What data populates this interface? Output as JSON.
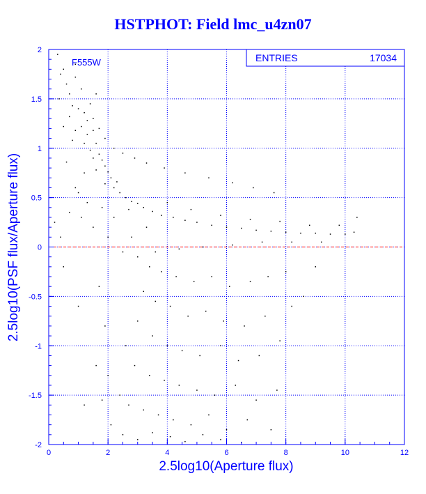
{
  "title": "HSTPHOT: Field lmc_u4zn07",
  "stats": {
    "label": "ENTRIES",
    "value": "17034"
  },
  "chart_data": {
    "type": "scatter",
    "title": "HSTPHOT: Field lmc_u4zn07",
    "filter_label": "F555W",
    "xlabel": "2.5log10(Aperture flux)",
    "ylabel": "2.5log10(PSF flux/Aperture flux)",
    "xlim": [
      0,
      12
    ],
    "ylim": [
      -2,
      2
    ],
    "xticks": [
      0,
      2,
      4,
      6,
      8,
      10,
      12
    ],
    "yticks": [
      -2,
      -1.5,
      -1,
      -0.5,
      0,
      0.5,
      1,
      1.5,
      2
    ],
    "grid": true,
    "reference_line": {
      "y": 0,
      "color": "#ff0000",
      "style": "dashed"
    },
    "entries": 17034,
    "colors": {
      "axis": "#0000ff",
      "points": "#000000",
      "reference": "#ff0000"
    },
    "series": [
      {
        "points": [
          [
            0.3,
            1.95
          ],
          [
            0.5,
            1.8
          ],
          [
            0.6,
            1.65
          ],
          [
            0.7,
            1.55
          ],
          [
            0.9,
            1.72
          ],
          [
            1.1,
            1.6
          ],
          [
            0.35,
            1.5
          ],
          [
            0.8,
            1.43
          ],
          [
            1.0,
            1.4
          ],
          [
            0.7,
            1.32
          ],
          [
            1.2,
            1.36
          ],
          [
            1.3,
            1.28
          ],
          [
            1.5,
            1.3
          ],
          [
            0.5,
            1.22
          ],
          [
            0.9,
            1.18
          ],
          [
            1.1,
            1.22
          ],
          [
            1.3,
            1.14
          ],
          [
            1.5,
            1.18
          ],
          [
            1.6,
            1.05
          ],
          [
            1.2,
            1.05
          ],
          [
            0.8,
            1.08
          ],
          [
            1.4,
            0.98
          ],
          [
            1.7,
            0.94
          ],
          [
            1.5,
            0.9
          ],
          [
            1.8,
            0.88
          ],
          [
            0.6,
            0.86
          ],
          [
            1.9,
            0.82
          ],
          [
            1.6,
            0.78
          ],
          [
            2.0,
            0.76
          ],
          [
            2.1,
            0.7
          ],
          [
            2.3,
            0.66
          ],
          [
            2.2,
            0.6
          ],
          [
            1.9,
            0.64
          ],
          [
            1.2,
            0.75
          ],
          [
            1.0,
            0.55
          ],
          [
            2.4,
            0.55
          ],
          [
            2.6,
            0.5
          ],
          [
            2.8,
            0.46
          ],
          [
            3.0,
            0.44
          ],
          [
            2.7,
            0.38
          ],
          [
            3.2,
            0.4
          ],
          [
            3.5,
            0.36
          ],
          [
            3.8,
            0.32
          ],
          [
            4.2,
            0.3
          ],
          [
            4.6,
            0.27
          ],
          [
            5.0,
            0.25
          ],
          [
            5.5,
            0.22
          ],
          [
            6.0,
            0.2
          ],
          [
            6.5,
            0.19
          ],
          [
            7.0,
            0.17
          ],
          [
            7.5,
            0.16
          ],
          [
            8.0,
            0.15
          ],
          [
            8.5,
            0.14
          ],
          [
            9.0,
            0.14
          ],
          [
            9.5,
            0.13
          ],
          [
            10.0,
            0.13
          ],
          [
            10.3,
            0.15
          ],
          [
            10.4,
            0.3
          ],
          [
            9.8,
            0.22
          ],
          [
            9.2,
            0.05
          ],
          [
            8.8,
            0.22
          ],
          [
            8.2,
            0.05
          ],
          [
            7.8,
            0.26
          ],
          [
            7.2,
            0.05
          ],
          [
            6.8,
            0.28
          ],
          [
            6.2,
            0.02
          ],
          [
            5.8,
            0.32
          ],
          [
            5.2,
            0.0
          ],
          [
            4.8,
            0.38
          ],
          [
            4.4,
            -0.02
          ],
          [
            4.0,
            0.45
          ],
          [
            3.6,
            -0.05
          ],
          [
            3.3,
            0.2
          ],
          [
            3.0,
            -0.1
          ],
          [
            2.8,
            0.1
          ],
          [
            2.5,
            -0.05
          ],
          [
            2.2,
            0.3
          ],
          [
            2.0,
            0.1
          ],
          [
            1.8,
            0.4
          ],
          [
            1.5,
            0.2
          ],
          [
            1.3,
            0.45
          ],
          [
            1.1,
            0.3
          ],
          [
            0.9,
            0.6
          ],
          [
            0.7,
            0.35
          ],
          [
            3.4,
            -0.2
          ],
          [
            3.8,
            -0.25
          ],
          [
            4.3,
            -0.3
          ],
          [
            4.9,
            -0.35
          ],
          [
            5.5,
            -0.3
          ],
          [
            6.1,
            -0.4
          ],
          [
            6.8,
            -0.35
          ],
          [
            7.4,
            -0.3
          ],
          [
            8.0,
            -0.25
          ],
          [
            3.2,
            -0.45
          ],
          [
            3.6,
            -0.55
          ],
          [
            4.1,
            -0.6
          ],
          [
            4.7,
            -0.7
          ],
          [
            5.3,
            -0.65
          ],
          [
            5.9,
            -0.75
          ],
          [
            6.6,
            -0.8
          ],
          [
            7.3,
            -0.7
          ],
          [
            8.2,
            -0.6
          ],
          [
            3.0,
            -0.75
          ],
          [
            3.5,
            -0.9
          ],
          [
            4.0,
            -1.0
          ],
          [
            4.5,
            -1.05
          ],
          [
            5.1,
            -1.1
          ],
          [
            5.8,
            -1.0
          ],
          [
            6.4,
            -1.15
          ],
          [
            7.1,
            -1.1
          ],
          [
            7.8,
            -0.95
          ],
          [
            2.6,
            -1.0
          ],
          [
            2.9,
            -1.2
          ],
          [
            3.4,
            -1.3
          ],
          [
            3.9,
            -1.35
          ],
          [
            4.4,
            -1.4
          ],
          [
            5.0,
            -1.45
          ],
          [
            5.6,
            -1.5
          ],
          [
            6.3,
            -1.4
          ],
          [
            7.0,
            -1.55
          ],
          [
            7.7,
            -1.45
          ],
          [
            2.4,
            -1.5
          ],
          [
            2.7,
            -1.6
          ],
          [
            3.2,
            -1.65
          ],
          [
            3.7,
            -1.7
          ],
          [
            4.2,
            -1.75
          ],
          [
            4.8,
            -1.8
          ],
          [
            5.4,
            -1.7
          ],
          [
            6.0,
            -1.85
          ],
          [
            6.7,
            -1.75
          ],
          [
            7.5,
            -1.85
          ],
          [
            2.1,
            -1.8
          ],
          [
            2.5,
            -1.9
          ],
          [
            3.0,
            -1.95
          ],
          [
            3.5,
            -1.88
          ],
          [
            4.1,
            -1.92
          ],
          [
            4.6,
            -1.97
          ],
          [
            5.2,
            -1.9
          ],
          [
            5.8,
            -1.95
          ],
          [
            6.5,
            -1.98
          ],
          [
            1.7,
            -0.4
          ],
          [
            1.9,
            -0.8
          ],
          [
            1.6,
            -1.2
          ],
          [
            2.0,
            -1.3
          ],
          [
            1.8,
            -1.55
          ],
          [
            0.5,
            -0.2
          ],
          [
            1.0,
            -0.6
          ],
          [
            1.2,
            -1.6
          ],
          [
            0.4,
            0.1
          ],
          [
            0.2,
            0.25
          ],
          [
            8.6,
            -0.5
          ],
          [
            9.0,
            -0.2
          ],
          [
            7.6,
            0.55
          ],
          [
            6.9,
            0.6
          ],
          [
            6.2,
            0.65
          ],
          [
            5.4,
            0.7
          ],
          [
            4.6,
            0.75
          ],
          [
            3.9,
            0.8
          ],
          [
            3.3,
            0.85
          ],
          [
            2.9,
            0.9
          ],
          [
            2.5,
            0.95
          ],
          [
            2.2,
            1.0
          ],
          [
            1.9,
            1.1
          ],
          [
            1.7,
            1.2
          ],
          [
            1.4,
            1.45
          ],
          [
            1.6,
            1.55
          ],
          [
            0.9,
            1.85
          ],
          [
            0.4,
            1.75
          ]
        ]
      }
    ]
  }
}
